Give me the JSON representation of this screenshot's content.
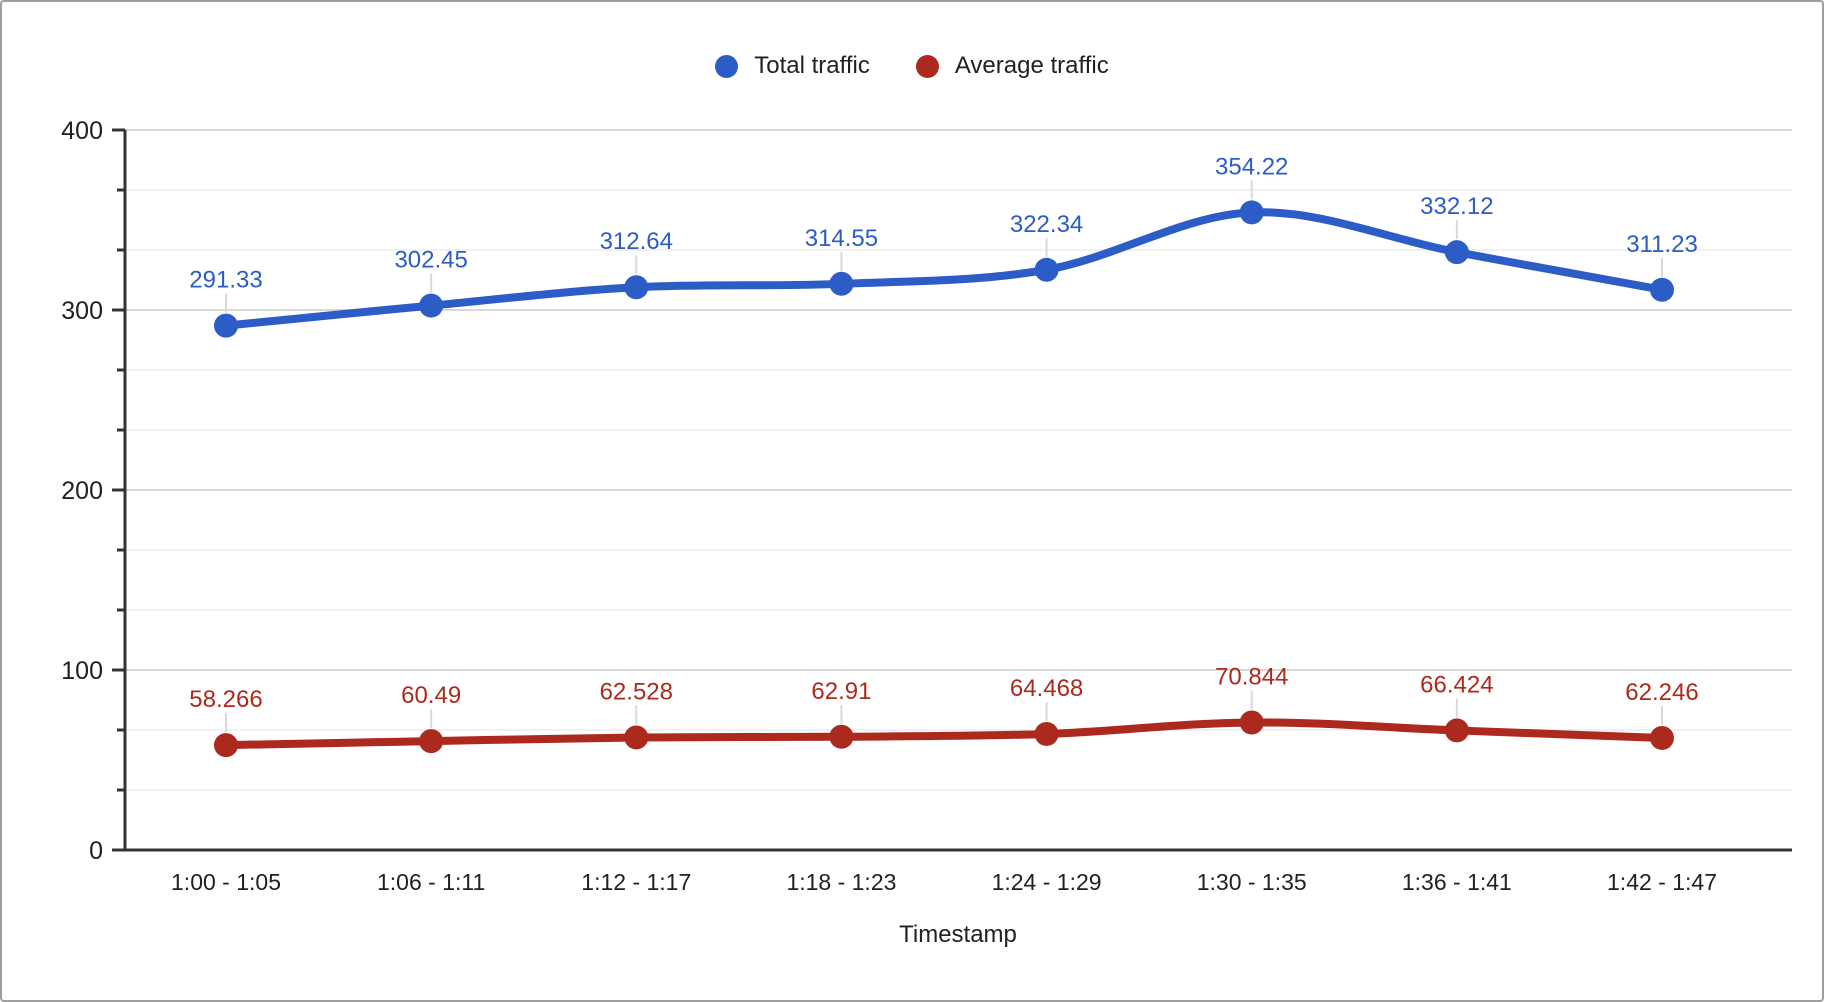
{
  "chart_data": {
    "type": "line",
    "title": "",
    "xlabel": "Timestamp",
    "ylabel": "",
    "x": [
      "1:00 - 1:05",
      "1:06 - 1:11",
      "1:12 - 1:17",
      "1:18 - 1:23",
      "1:24 - 1:29",
      "1:30 - 1:35",
      "1:36 - 1:41",
      "1:42 - 1:47"
    ],
    "ylim": [
      0,
      400
    ],
    "y_major_ticks": [
      0,
      100,
      200,
      300,
      400
    ],
    "y_tick_labels": [
      "0",
      "100",
      "200",
      "300",
      "400"
    ],
    "y_minor_gridlines_per_interval": 2,
    "grid": true,
    "smooth_lines": true,
    "point_labels_shown": true,
    "legend_position": "top-center",
    "series": [
      {
        "name": "Total traffic",
        "color": "#2c5cc5",
        "values": [
          291.33,
          302.45,
          312.64,
          314.55,
          322.34,
          354.22,
          332.12,
          311.23
        ],
        "labels": [
          "291.33",
          "302.45",
          "312.64",
          "314.55",
          "322.34",
          "354.22",
          "332.12",
          "311.23"
        ]
      },
      {
        "name": "Average traffic",
        "color": "#ac2a1d",
        "values": [
          58.266,
          60.49,
          62.528,
          62.91,
          64.468,
          70.844,
          66.424,
          62.246
        ],
        "labels": [
          "58.266",
          "60.49",
          "62.528",
          "62.91",
          "64.468",
          "70.844",
          "66.424",
          "62.246"
        ]
      }
    ],
    "colors": {
      "axis_line": "#333333",
      "tick_label": "#212121",
      "major_gridline": "#d9d9d9",
      "minor_gridline": "#f1f1f1",
      "leader_line": "#d9d9d9",
      "background": "#ffffff",
      "frame_border": "#9e9e9e"
    }
  }
}
